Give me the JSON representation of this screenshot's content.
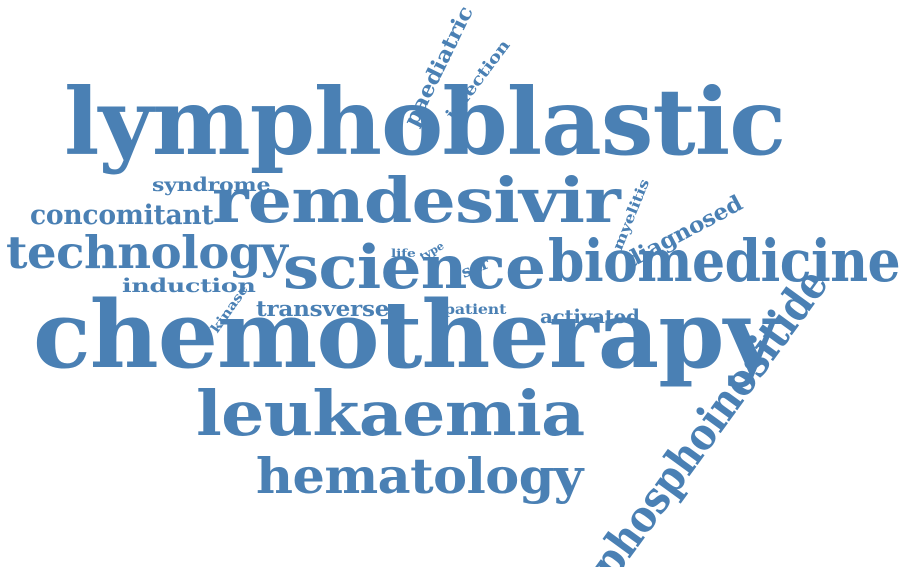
{
  "word_cloud": {
    "color": "#4a80b4",
    "words": [
      "lymphoblastic",
      "chemotherapy",
      "remdesivir",
      "science",
      "biomedicine",
      "leukaemia",
      "hematology",
      "technology",
      "phosphoinositide",
      "concomitant",
      "syndrome",
      "induction",
      "transverse",
      "diagnosed",
      "activated",
      "patient",
      "paediatric",
      "infection",
      "myelitis",
      "kinase",
      "sar",
      "life",
      "type"
    ]
  }
}
